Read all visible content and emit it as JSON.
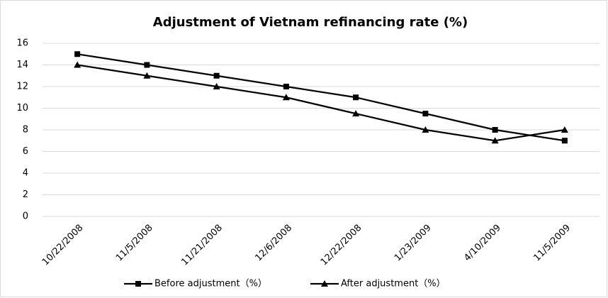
{
  "chart_data": {
    "type": "line",
    "title": "Adjustment of Vietnam refinancing rate (%)",
    "categories": [
      "10/22/2008",
      "11/5/2008",
      "11/21/2008",
      "12/6/2008",
      "12/22/2008",
      "1/23/2009",
      "4/10/2009",
      "11/5/2009"
    ],
    "series": [
      {
        "name": "Before adjustment（%）",
        "color": "#000000",
        "marker": "square",
        "values": [
          15,
          14,
          13,
          12,
          11,
          9.5,
          8,
          7
        ]
      },
      {
        "name": "After adjustment（%）",
        "color": "#000000",
        "marker": "triangle",
        "values": [
          14,
          13,
          12,
          11,
          9.5,
          8,
          7,
          8
        ]
      }
    ],
    "ylim": [
      0,
      16
    ],
    "yticks": [
      0,
      2,
      4,
      6,
      8,
      10,
      12,
      14,
      16
    ],
    "grid": true,
    "legend": "bottom"
  }
}
